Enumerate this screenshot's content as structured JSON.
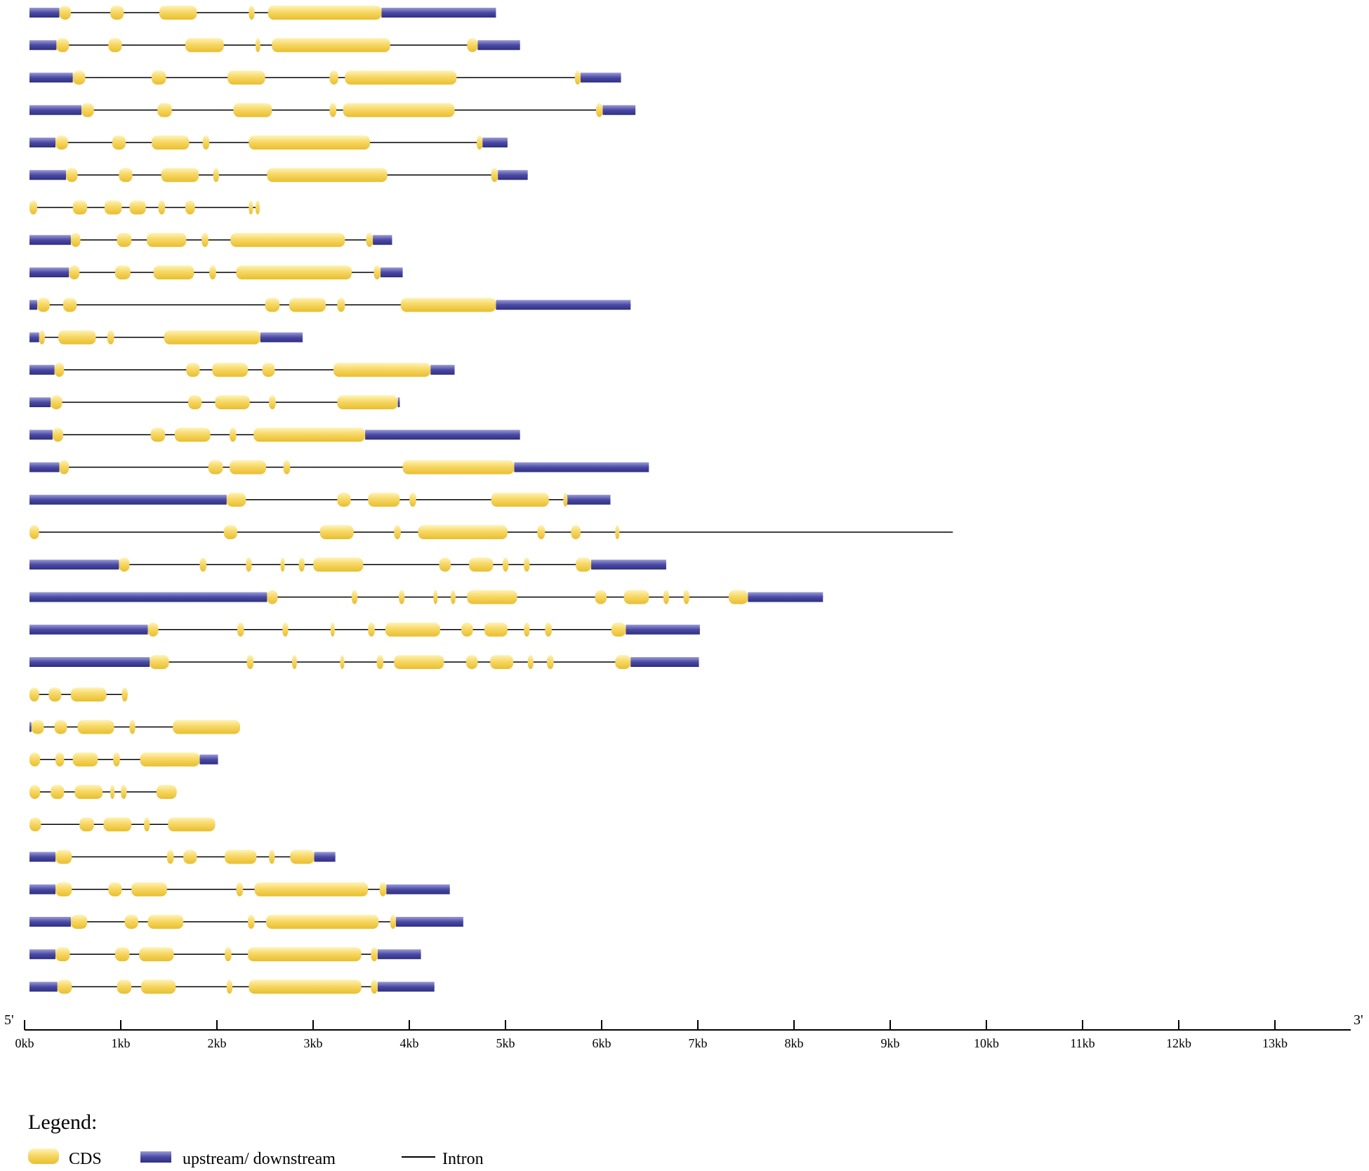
{
  "colors": {
    "cds": "#f5d15a",
    "utr": "#4a4aa0",
    "intron": "#000000"
  },
  "axis": {
    "five_prime": "5'",
    "three_prime": "3'",
    "unit": "kb",
    "max": 13.8,
    "ticks": [
      "0kb",
      "1kb",
      "2kb",
      "3kb",
      "4kb",
      "5kb",
      "6kb",
      "7kb",
      "8kb",
      "9kb",
      "10kb",
      "11kb",
      "12kb",
      "13kb"
    ]
  },
  "legend": {
    "title": "Legend:",
    "cds": "CDS",
    "utr": "upstream/ downstream",
    "intron": "Intron"
  },
  "chart_data": {
    "type": "gene_structure",
    "x_unit": "kb",
    "xlim": [
      0,
      13.8
    ],
    "features": [
      "cds",
      "utr",
      "intron"
    ],
    "genes": [
      {
        "length": 4.85,
        "cds": [
          [
            0.31,
            0.43
          ],
          [
            0.84,
            0.98
          ],
          [
            1.35,
            1.74
          ],
          [
            2.28,
            2.34
          ],
          [
            2.48,
            3.66
          ]
        ],
        "utr": [
          [
            0,
            0.31
          ],
          [
            3.66,
            4.85
          ]
        ]
      },
      {
        "length": 5.1,
        "cds": [
          [
            0.28,
            0.41
          ],
          [
            0.82,
            0.96
          ],
          [
            1.62,
            2.02
          ],
          [
            2.35,
            2.4
          ],
          [
            2.52,
            3.75
          ],
          [
            4.55,
            4.66
          ]
        ],
        "utr": [
          [
            0,
            0.28
          ],
          [
            4.66,
            5.1
          ]
        ]
      },
      {
        "length": 6.15,
        "cds": [
          [
            0.45,
            0.58
          ],
          [
            1.27,
            1.42
          ],
          [
            2.06,
            2.45
          ],
          [
            3.12,
            3.21
          ],
          [
            3.28,
            4.44
          ],
          [
            5.67,
            5.73
          ]
        ],
        "utr": [
          [
            0,
            0.45
          ],
          [
            5.73,
            6.15
          ]
        ]
      },
      {
        "length": 6.3,
        "cds": [
          [
            0.54,
            0.67
          ],
          [
            1.33,
            1.48
          ],
          [
            2.12,
            2.52
          ],
          [
            3.12,
            3.19
          ],
          [
            3.26,
            4.42
          ],
          [
            5.89,
            5.96
          ]
        ],
        "utr": [
          [
            0,
            0.54
          ],
          [
            5.96,
            6.3
          ]
        ]
      },
      {
        "length": 4.97,
        "cds": [
          [
            0.27,
            0.4
          ],
          [
            0.86,
            1.0
          ],
          [
            1.27,
            1.66
          ],
          [
            1.8,
            1.87
          ],
          [
            2.28,
            3.54
          ],
          [
            4.65,
            4.71
          ]
        ],
        "utr": [
          [
            0,
            0.27
          ],
          [
            4.71,
            4.97
          ]
        ]
      },
      {
        "length": 5.18,
        "cds": [
          [
            0.38,
            0.5
          ],
          [
            0.93,
            1.07
          ],
          [
            1.37,
            1.76
          ],
          [
            1.91,
            1.97
          ],
          [
            2.47,
            3.72
          ],
          [
            4.8,
            4.87
          ]
        ],
        "utr": [
          [
            0,
            0.38
          ],
          [
            4.87,
            5.18
          ]
        ]
      },
      {
        "length": 2.37,
        "cds": [
          [
            0,
            0.08
          ],
          [
            0.45,
            0.6
          ],
          [
            0.78,
            0.96
          ],
          [
            1.04,
            1.21
          ],
          [
            1.34,
            1.41
          ],
          [
            1.62,
            1.72
          ],
          [
            2.28,
            2.32
          ],
          [
            2.35,
            2.37
          ]
        ],
        "utr": []
      },
      {
        "length": 3.77,
        "cds": [
          [
            0.43,
            0.53
          ],
          [
            0.91,
            1.06
          ],
          [
            1.22,
            1.63
          ],
          [
            1.79,
            1.86
          ],
          [
            2.09,
            3.28
          ],
          [
            3.5,
            3.57
          ]
        ],
        "utr": [
          [
            0,
            0.43
          ],
          [
            3.57,
            3.77
          ]
        ]
      },
      {
        "length": 3.88,
        "cds": [
          [
            0.41,
            0.52
          ],
          [
            0.89,
            1.05
          ],
          [
            1.29,
            1.71
          ],
          [
            1.87,
            1.94
          ],
          [
            2.15,
            3.35
          ],
          [
            3.58,
            3.65
          ]
        ],
        "utr": [
          [
            0,
            0.41
          ],
          [
            3.65,
            3.88
          ]
        ]
      },
      {
        "length": 6.25,
        "cds": [
          [
            0.08,
            0.21
          ],
          [
            0.35,
            0.49
          ],
          [
            2.45,
            2.6
          ],
          [
            2.7,
            3.08
          ],
          [
            3.2,
            3.28
          ],
          [
            3.86,
            4.85
          ]
        ],
        "utr": [
          [
            0,
            0.08
          ],
          [
            4.85,
            6.25
          ]
        ]
      },
      {
        "length": 2.84,
        "cds": [
          [
            0.1,
            0.16
          ],
          [
            0.3,
            0.69
          ],
          [
            0.81,
            0.88
          ],
          [
            1.4,
            2.4
          ]
        ],
        "utr": [
          [
            0,
            0.1
          ],
          [
            2.4,
            2.84
          ]
        ]
      },
      {
        "length": 4.42,
        "cds": [
          [
            0.26,
            0.36
          ],
          [
            1.63,
            1.77
          ],
          [
            1.9,
            2.27
          ],
          [
            2.42,
            2.55
          ],
          [
            3.16,
            4.17
          ]
        ],
        "utr": [
          [
            0,
            0.26
          ],
          [
            4.17,
            4.42
          ]
        ]
      },
      {
        "length": 3.85,
        "cds": [
          [
            0.22,
            0.34
          ],
          [
            1.65,
            1.79
          ],
          [
            1.93,
            2.29
          ],
          [
            2.49,
            2.56
          ],
          [
            3.2,
            3.83
          ]
        ],
        "utr": [
          [
            0,
            0.22
          ],
          [
            3.83,
            3.85
          ]
        ]
      },
      {
        "length": 5.1,
        "cds": [
          [
            0.24,
            0.35
          ],
          [
            1.26,
            1.41
          ],
          [
            1.51,
            1.88
          ],
          [
            2.08,
            2.15
          ],
          [
            2.33,
            3.49
          ]
        ],
        "utr": [
          [
            0,
            0.24
          ],
          [
            3.49,
            5.1
          ]
        ]
      },
      {
        "length": 6.44,
        "cds": [
          [
            0.31,
            0.41
          ],
          [
            1.86,
            2.01
          ],
          [
            2.08,
            2.46
          ],
          [
            2.64,
            2.71
          ],
          [
            3.88,
            5.04
          ]
        ],
        "utr": [
          [
            0,
            0.31
          ],
          [
            5.04,
            6.44
          ]
        ]
      },
      {
        "length": 6.04,
        "cds": [
          [
            2.05,
            2.25
          ],
          [
            3.2,
            3.34
          ],
          [
            3.52,
            3.85
          ],
          [
            3.95,
            4.02
          ],
          [
            4.8,
            5.4
          ],
          [
            5.55,
            5.58
          ]
        ],
        "utr": [
          [
            0,
            2.05
          ],
          [
            5.58,
            6.04
          ]
        ]
      },
      {
        "length": 9.6,
        "cds": [
          [
            0,
            0.1
          ],
          [
            2.02,
            2.16
          ],
          [
            3.02,
            3.37
          ],
          [
            3.79,
            3.86
          ],
          [
            4.04,
            4.97
          ],
          [
            5.28,
            5.36
          ],
          [
            5.63,
            5.73
          ],
          [
            6.09,
            6.13
          ]
        ],
        "utr": []
      },
      {
        "length": 6.62,
        "cds": [
          [
            0.93,
            1.04
          ],
          [
            1.77,
            1.84
          ],
          [
            2.25,
            2.31
          ],
          [
            2.61,
            2.65
          ],
          [
            2.8,
            2.86
          ],
          [
            2.95,
            3.47
          ],
          [
            4.26,
            4.38
          ],
          [
            4.57,
            4.82
          ],
          [
            4.92,
            4.98
          ],
          [
            5.14,
            5.2
          ],
          [
            5.68,
            5.84
          ]
        ],
        "utr": [
          [
            0,
            0.93
          ],
          [
            5.84,
            6.62
          ]
        ]
      },
      {
        "length": 8.25,
        "cds": [
          [
            2.47,
            2.58
          ],
          [
            3.35,
            3.41
          ],
          [
            3.84,
            3.9
          ],
          [
            4.2,
            4.24
          ],
          [
            4.38,
            4.43
          ],
          [
            4.55,
            5.07
          ],
          [
            5.88,
            6.0
          ],
          [
            6.18,
            6.44
          ],
          [
            6.59,
            6.65
          ],
          [
            6.8,
            6.86
          ],
          [
            7.27,
            7.47
          ]
        ],
        "utr": [
          [
            0,
            2.47
          ],
          [
            7.47,
            8.25
          ]
        ]
      },
      {
        "length": 6.97,
        "cds": [
          [
            1.23,
            1.34
          ],
          [
            2.16,
            2.23
          ],
          [
            2.63,
            2.69
          ],
          [
            3.13,
            3.16
          ],
          [
            3.52,
            3.59
          ],
          [
            3.7,
            4.27
          ],
          [
            4.49,
            4.61
          ],
          [
            4.73,
            4.97
          ],
          [
            5.14,
            5.2
          ],
          [
            5.36,
            5.43
          ],
          [
            6.05,
            6.2
          ]
        ],
        "utr": [
          [
            0,
            1.23
          ],
          [
            6.2,
            6.97
          ]
        ]
      },
      {
        "length": 6.96,
        "cds": [
          [
            1.25,
            1.45
          ],
          [
            2.26,
            2.33
          ],
          [
            2.73,
            2.78
          ],
          [
            3.23,
            3.26
          ],
          [
            3.61,
            3.68
          ],
          [
            3.79,
            4.31
          ],
          [
            4.54,
            4.66
          ],
          [
            4.79,
            5.03
          ],
          [
            5.18,
            5.24
          ],
          [
            5.38,
            5.45
          ],
          [
            6.09,
            6.25
          ]
        ],
        "utr": [
          [
            0,
            1.25
          ],
          [
            6.25,
            6.96
          ]
        ]
      },
      {
        "length": 1.02,
        "cds": [
          [
            0,
            0.1
          ],
          [
            0.2,
            0.33
          ],
          [
            0.43,
            0.8
          ],
          [
            0.96,
            1.02
          ]
        ],
        "utr": []
      },
      {
        "length": 2.19,
        "cds": [
          [
            0.02,
            0.15
          ],
          [
            0.26,
            0.39
          ],
          [
            0.5,
            0.88
          ],
          [
            1.04,
            1.1
          ],
          [
            1.49,
            2.19
          ]
        ],
        "utr": [
          [
            0,
            0.02
          ]
        ]
      },
      {
        "length": 1.96,
        "cds": [
          [
            0,
            0.11
          ],
          [
            0.27,
            0.36
          ],
          [
            0.45,
            0.71
          ],
          [
            0.87,
            0.94
          ],
          [
            1.15,
            1.77
          ]
        ],
        "utr": [
          [
            1.77,
            1.96
          ]
        ]
      },
      {
        "length": 1.53,
        "cds": [
          [
            0,
            0.11
          ],
          [
            0.22,
            0.36
          ],
          [
            0.47,
            0.76
          ],
          [
            0.84,
            0.87
          ],
          [
            0.95,
            1.01
          ],
          [
            1.32,
            1.53
          ]
        ],
        "utr": []
      },
      {
        "length": 1.93,
        "cds": [
          [
            0,
            0.12
          ],
          [
            0.52,
            0.67
          ],
          [
            0.77,
            1.06
          ],
          [
            1.19,
            1.25
          ],
          [
            1.44,
            1.93
          ]
        ],
        "utr": []
      },
      {
        "length": 3.18,
        "cds": [
          [
            0.27,
            0.44
          ],
          [
            1.43,
            1.5
          ],
          [
            1.6,
            1.74
          ],
          [
            2.03,
            2.36
          ],
          [
            2.49,
            2.55
          ],
          [
            2.71,
            2.96
          ]
        ],
        "utr": [
          [
            0,
            0.27
          ],
          [
            2.96,
            3.18
          ]
        ]
      },
      {
        "length": 4.37,
        "cds": [
          [
            0.27,
            0.44
          ],
          [
            0.82,
            0.96
          ],
          [
            1.06,
            1.43
          ],
          [
            2.15,
            2.22
          ],
          [
            2.34,
            3.52
          ],
          [
            3.64,
            3.71
          ]
        ],
        "utr": [
          [
            0,
            0.27
          ],
          [
            3.71,
            4.37
          ]
        ]
      },
      {
        "length": 4.51,
        "cds": [
          [
            0.43,
            0.6
          ],
          [
            0.99,
            1.13
          ],
          [
            1.23,
            1.6
          ],
          [
            2.27,
            2.34
          ],
          [
            2.46,
            3.63
          ],
          [
            3.75,
            3.81
          ]
        ],
        "utr": [
          [
            0,
            0.43
          ],
          [
            3.81,
            4.51
          ]
        ]
      },
      {
        "length": 4.07,
        "cds": [
          [
            0.27,
            0.42
          ],
          [
            0.89,
            1.04
          ],
          [
            1.14,
            1.5
          ],
          [
            2.03,
            2.1
          ],
          [
            2.27,
            3.45
          ],
          [
            3.55,
            3.62
          ]
        ],
        "utr": [
          [
            0,
            0.27
          ],
          [
            3.62,
            4.07
          ]
        ]
      },
      {
        "length": 4.21,
        "cds": [
          [
            0.29,
            0.44
          ],
          [
            0.91,
            1.06
          ],
          [
            1.16,
            1.52
          ],
          [
            2.05,
            2.11
          ],
          [
            2.28,
            3.45
          ],
          [
            3.55,
            3.62
          ]
        ],
        "utr": [
          [
            0,
            0.29
          ],
          [
            3.62,
            4.21
          ]
        ]
      }
    ]
  }
}
